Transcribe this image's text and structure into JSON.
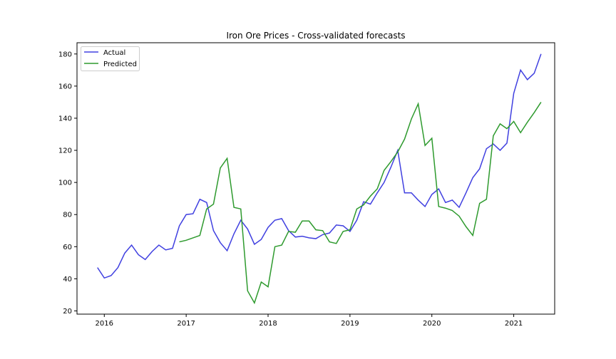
{
  "chart_data": {
    "type": "line",
    "title": "Iron Ore Prices - Cross-validated forecasts",
    "xlabel": "",
    "ylabel": "",
    "x_ticks": [
      "2016",
      "2017",
      "2018",
      "2019",
      "2020",
      "2021"
    ],
    "y_ticks": [
      20,
      40,
      60,
      80,
      100,
      120,
      140,
      160,
      180
    ],
    "xlim": [
      "2015-09",
      "2021-07"
    ],
    "ylim": [
      18,
      187
    ],
    "grid": false,
    "legend_position": "top-left",
    "series": [
      {
        "name": "Actual",
        "color": "#4040e0",
        "points": [
          [
            "2015-12",
            47
          ],
          [
            "2016-01",
            40.5
          ],
          [
            "2016-02",
            42
          ],
          [
            "2016-03",
            47
          ],
          [
            "2016-04",
            56
          ],
          [
            "2016-05",
            61
          ],
          [
            "2016-06",
            55
          ],
          [
            "2016-07",
            52
          ],
          [
            "2016-08",
            57
          ],
          [
            "2016-09",
            61
          ],
          [
            "2016-10",
            58
          ],
          [
            "2016-11",
            59
          ],
          [
            "2016-12",
            73
          ],
          [
            "2017-01",
            80
          ],
          [
            "2017-02",
            80.5
          ],
          [
            "2017-03",
            89.5
          ],
          [
            "2017-04",
            87.5
          ],
          [
            "2017-05",
            70
          ],
          [
            "2017-06",
            62.5
          ],
          [
            "2017-07",
            57.5
          ],
          [
            "2017-08",
            68
          ],
          [
            "2017-09",
            76.5
          ],
          [
            "2017-10",
            71
          ],
          [
            "2017-11",
            61.5
          ],
          [
            "2017-12",
            64.5
          ],
          [
            "2018-01",
            72
          ],
          [
            "2018-02",
            76.5
          ],
          [
            "2018-03",
            77.5
          ],
          [
            "2018-04",
            70
          ],
          [
            "2018-05",
            66
          ],
          [
            "2018-06",
            66.5
          ],
          [
            "2018-07",
            65.5
          ],
          [
            "2018-08",
            65
          ],
          [
            "2018-09",
            67.5
          ],
          [
            "2018-10",
            68.5
          ],
          [
            "2018-11",
            73.5
          ],
          [
            "2018-12",
            73
          ],
          [
            "2019-01",
            69.5
          ],
          [
            "2019-02",
            76.5
          ],
          [
            "2019-03",
            88
          ],
          [
            "2019-04",
            86.5
          ],
          [
            "2019-05",
            93.5
          ],
          [
            "2019-06",
            100
          ],
          [
            "2019-07",
            109.5
          ],
          [
            "2019-08",
            120
          ],
          [
            "2019-09",
            93.5
          ],
          [
            "2019-10",
            93.5
          ],
          [
            "2019-11",
            89
          ],
          [
            "2019-12",
            85
          ],
          [
            "2020-01",
            92.5
          ],
          [
            "2020-02",
            96
          ],
          [
            "2020-03",
            87.5
          ],
          [
            "2020-04",
            89
          ],
          [
            "2020-05",
            84.5
          ],
          [
            "2020-06",
            93.5
          ],
          [
            "2020-07",
            103
          ],
          [
            "2020-08",
            108.5
          ],
          [
            "2020-09",
            121
          ],
          [
            "2020-10",
            124
          ],
          [
            "2020-11",
            120
          ],
          [
            "2020-12",
            124.5
          ],
          [
            "2021-01",
            155.5
          ],
          [
            "2021-02",
            170
          ],
          [
            "2021-03",
            164
          ],
          [
            "2021-04",
            168
          ],
          [
            "2021-05",
            180
          ]
        ]
      },
      {
        "name": "Predicted",
        "color": "#2e9a2e",
        "points": [
          [
            "2016-12",
            63
          ],
          [
            "2017-01",
            64
          ],
          [
            "2017-02",
            65.5
          ],
          [
            "2017-03",
            67
          ],
          [
            "2017-04",
            83.5
          ],
          [
            "2017-05",
            86.5
          ],
          [
            "2017-06",
            109
          ],
          [
            "2017-07",
            115
          ],
          [
            "2017-08",
            84.5
          ],
          [
            "2017-09",
            83.5
          ],
          [
            "2017-10",
            32.5
          ],
          [
            "2017-11",
            25
          ],
          [
            "2017-12",
            38
          ],
          [
            "2018-01",
            35
          ],
          [
            "2018-02",
            60
          ],
          [
            "2018-03",
            61
          ],
          [
            "2018-04",
            69.5
          ],
          [
            "2018-05",
            69
          ],
          [
            "2018-06",
            76
          ],
          [
            "2018-07",
            76
          ],
          [
            "2018-08",
            70.5
          ],
          [
            "2018-09",
            70
          ],
          [
            "2018-10",
            63
          ],
          [
            "2018-11",
            62
          ],
          [
            "2018-12",
            69.5
          ],
          [
            "2019-01",
            70.5
          ],
          [
            "2019-02",
            83.5
          ],
          [
            "2019-03",
            86
          ],
          [
            "2019-04",
            91.5
          ],
          [
            "2019-05",
            96
          ],
          [
            "2019-06",
            107.5
          ],
          [
            "2019-07",
            113
          ],
          [
            "2019-08",
            119
          ],
          [
            "2019-09",
            127
          ],
          [
            "2019-10",
            139.5
          ],
          [
            "2019-11",
            149
          ],
          [
            "2019-12",
            123
          ],
          [
            "2020-01",
            127.5
          ],
          [
            "2020-02",
            85
          ],
          [
            "2020-03",
            84
          ],
          [
            "2020-04",
            82.5
          ],
          [
            "2020-05",
            79
          ],
          [
            "2020-06",
            72.5
          ],
          [
            "2020-07",
            67
          ],
          [
            "2020-08",
            87
          ],
          [
            "2020-09",
            89.5
          ],
          [
            "2020-10",
            129
          ],
          [
            "2020-11",
            136.5
          ],
          [
            "2020-12",
            133.5
          ],
          [
            "2021-01",
            138
          ],
          [
            "2021-02",
            131
          ],
          [
            "2021-03",
            137.5
          ],
          [
            "2021-04",
            143.5
          ],
          [
            "2021-05",
            150
          ]
        ]
      }
    ]
  }
}
